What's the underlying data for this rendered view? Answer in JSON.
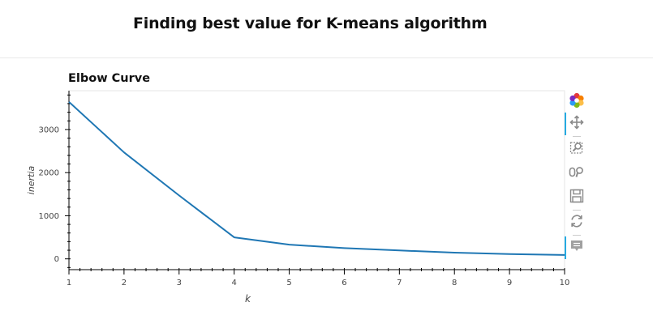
{
  "header": {
    "title": "Finding best value for K-means algorithm"
  },
  "toolbar": {
    "tools": [
      {
        "name": "bokeh-logo-icon"
      },
      {
        "name": "pan-tool-icon",
        "active": true
      },
      {
        "name": "box-zoom-tool-icon"
      },
      {
        "name": "wheel-zoom-tool-icon"
      },
      {
        "name": "save-tool-icon"
      },
      {
        "name": "reset-tool-icon"
      },
      {
        "name": "hover-tool-icon",
        "active": true
      }
    ]
  },
  "chart_data": {
    "type": "line",
    "title": "Elbow Curve",
    "xlabel": "k",
    "ylabel": "inertia",
    "x": [
      1,
      2,
      3,
      4,
      5,
      6,
      7,
      8,
      9,
      10
    ],
    "series": [
      {
        "color": "#1f77b4",
        "values": [
          3640,
          2470,
          1470,
          500,
          330,
          250,
          195,
          145,
          110,
          90
        ]
      }
    ],
    "xlim": [
      1,
      10
    ],
    "ylim": [
      -250,
      3900
    ],
    "xticks": [
      1,
      2,
      3,
      4,
      5,
      6,
      7,
      8,
      9,
      10
    ],
    "yticks": [
      0,
      1000,
      2000,
      3000
    ],
    "grid": false,
    "legend": "none"
  }
}
